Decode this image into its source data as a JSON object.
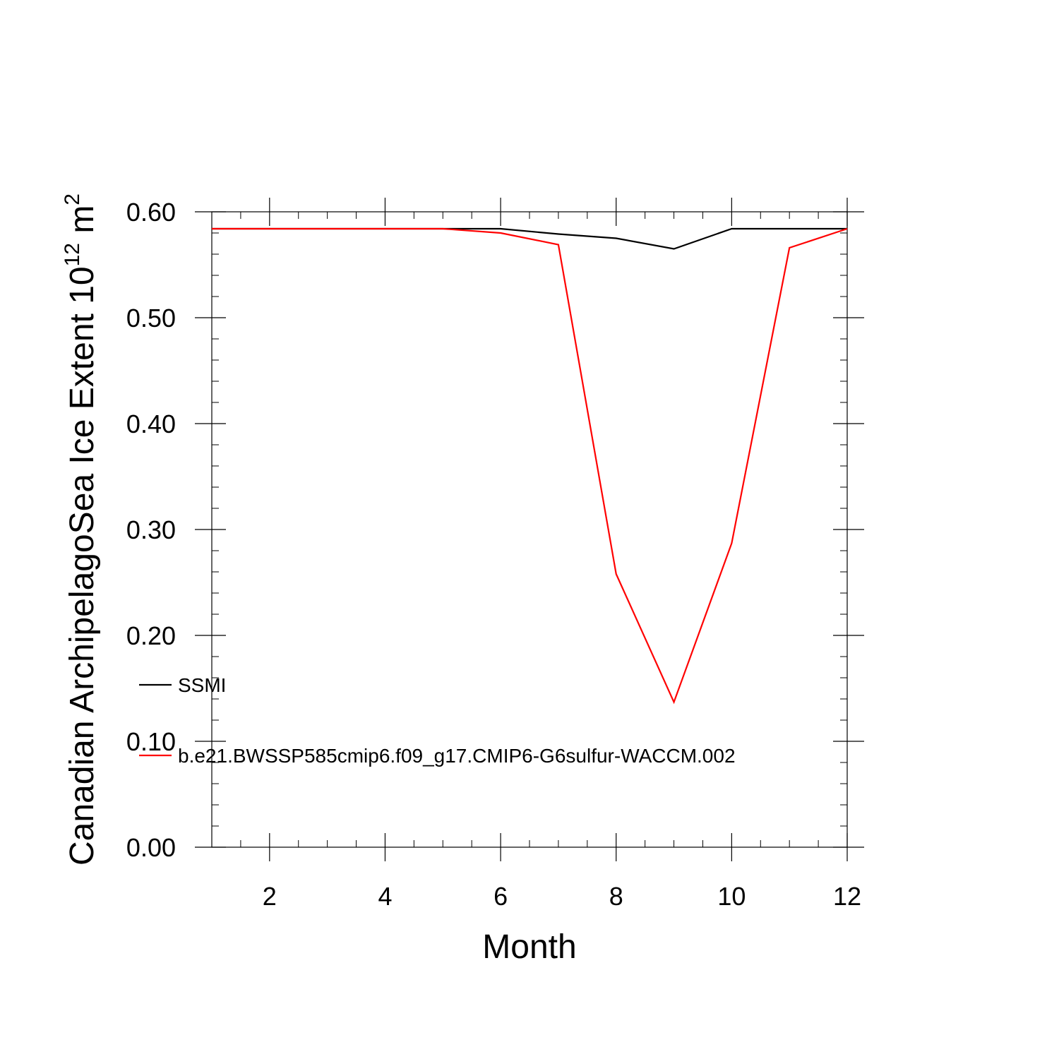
{
  "chart_data": {
    "type": "line",
    "xlabel": "Month",
    "ylabel": {
      "main": "Canadian ArchipelagoSea Ice Extent 10",
      "sup1": "12",
      "unit": " m",
      "sup2": "2"
    },
    "xlim": [
      1,
      12
    ],
    "ylim": [
      0,
      0.6
    ],
    "x_major_ticks": [
      2,
      4,
      6,
      8,
      10,
      12
    ],
    "x_tick_labels": [
      "2",
      "4",
      "6",
      "8",
      "10",
      "12"
    ],
    "y_major_ticks": [
      0,
      0.1,
      0.2,
      0.3,
      0.4,
      0.5,
      0.6
    ],
    "y_tick_labels": [
      "0.00",
      "0.10",
      "0.20",
      "0.30",
      "0.40",
      "0.50",
      "0.60"
    ],
    "x": [
      1,
      2,
      3,
      4,
      5,
      6,
      7,
      8,
      9,
      10,
      11,
      12
    ],
    "series": [
      {
        "name": "SSMI",
        "color": "#000000",
        "values": [
          0.584,
          0.584,
          0.584,
          0.584,
          0.584,
          0.584,
          0.579,
          0.575,
          0.565,
          0.584,
          0.584,
          0.584
        ]
      },
      {
        "name": "b.e21.BWSSP585cmip6.f09_g17.CMIP6-G6sulfur-WACCM.002",
        "color": "#ff0000",
        "values": [
          0.584,
          0.584,
          0.584,
          0.584,
          0.584,
          0.58,
          0.569,
          0.258,
          0.137,
          0.287,
          0.566,
          0.584
        ]
      }
    ],
    "legend_position": "bottom-left-inside",
    "grid": false
  }
}
